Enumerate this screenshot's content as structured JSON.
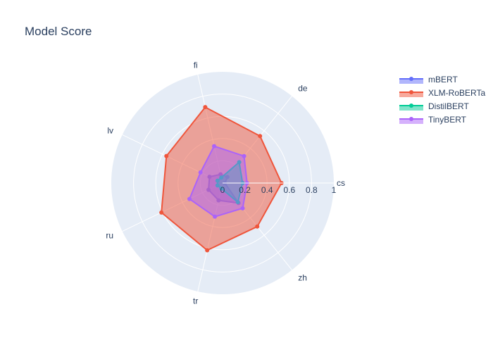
{
  "chart_data": {
    "type": "radar",
    "title": "Model Score",
    "categories": [
      "cs",
      "de",
      "fi",
      "lv",
      "ru",
      "tr",
      "zh"
    ],
    "radial_ticks": [
      "0",
      "0.2",
      "0.4",
      "0.6",
      "0.8",
      "1"
    ],
    "range": [
      0,
      1
    ],
    "legend_position": "top-right",
    "series": [
      {
        "name": "mBERT",
        "color": "#636efa",
        "values": [
          0.02,
          0.07,
          0.08,
          0.13,
          0.14,
          0.16,
          0.23
        ]
      },
      {
        "name": "XLM-RoBERTa",
        "color": "#ef553b",
        "values": [
          0.53,
          0.54,
          0.7,
          0.56,
          0.61,
          0.62,
          0.5
        ]
      },
      {
        "name": "DistilBERT",
        "color": "#00cc96",
        "values": [
          0.18,
          0.24,
          0.05,
          0.05,
          0.05,
          0.05,
          0.22
        ]
      },
      {
        "name": "TinyBERT",
        "color": "#ab63fa",
        "values": [
          0.22,
          0.31,
          0.34,
          0.22,
          0.33,
          0.31,
          0.29
        ]
      }
    ]
  }
}
